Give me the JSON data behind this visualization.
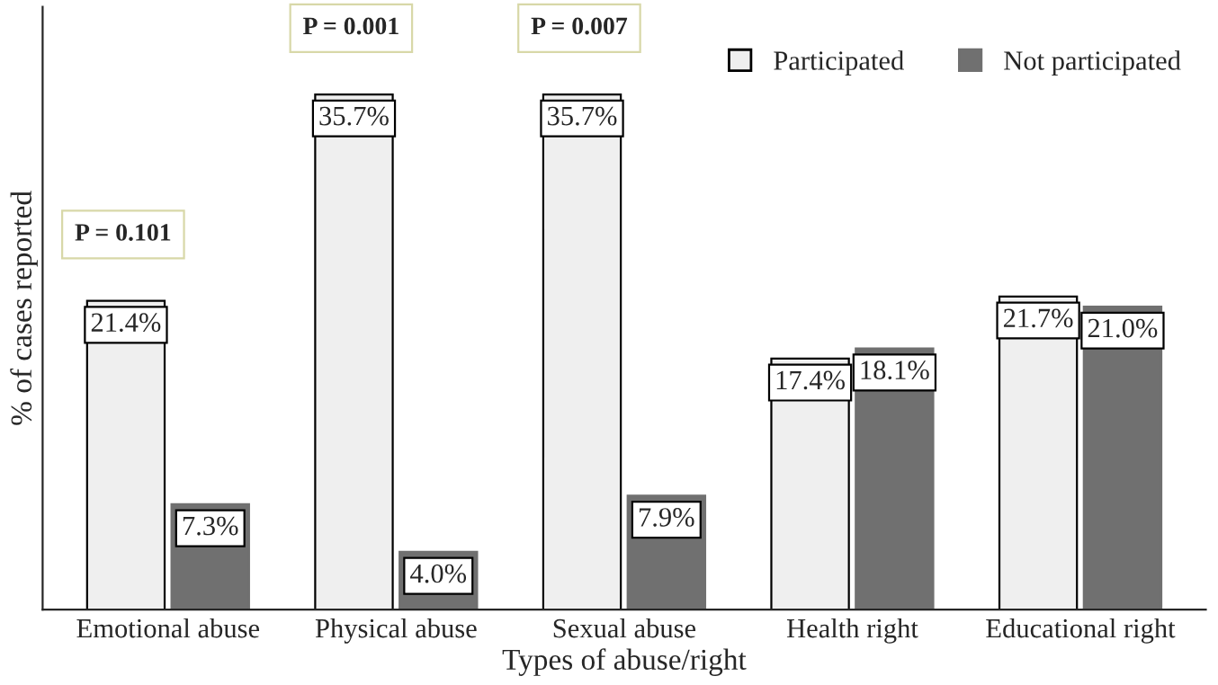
{
  "chart_data": {
    "type": "bar",
    "xlabel": "Types of abuse/right",
    "ylabel": "% of cases reported",
    "categories": [
      "Emotional abuse",
      "Physical abuse",
      "Sexual abuse",
      "Health right",
      "Educational right"
    ],
    "series": [
      {
        "name": "Participated",
        "color": "#efefef",
        "values": [
          21.4,
          35.7,
          35.7,
          17.4,
          21.7
        ],
        "value_labels": [
          "21.4%",
          "35.7%",
          "35.7%",
          "17.4%",
          "21.7%"
        ]
      },
      {
        "name": "Not participated",
        "color": "#707070",
        "values": [
          7.3,
          4.0,
          7.9,
          18.1,
          21.0
        ],
        "value_labels": [
          "7.3%",
          "4.0%",
          "7.9%",
          "18.1%",
          "21.0%"
        ]
      }
    ],
    "data_labels": true,
    "tick_labels": "x",
    "legend": "top right",
    "grid": false,
    "annotations": [
      "P = 0.101",
      "P = 0.001",
      "P = 0.007"
    ]
  }
}
